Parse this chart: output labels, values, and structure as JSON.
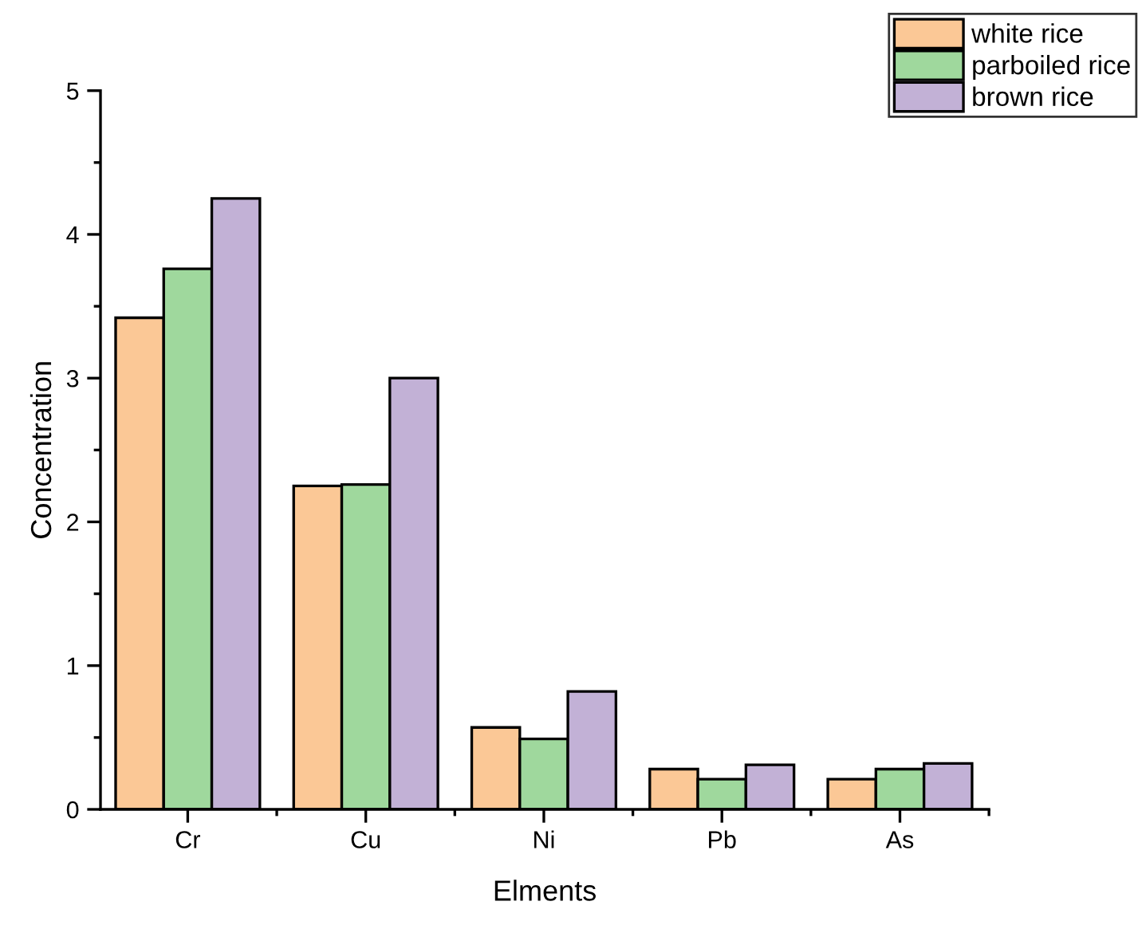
{
  "chart_data": {
    "type": "bar",
    "xlabel": "Elments",
    "ylabel": "Concentration",
    "categories": [
      "Cr",
      "Cu",
      "Ni",
      "Pb",
      "As"
    ],
    "series": [
      {
        "name": "white rice",
        "color": "#fbc896",
        "values": [
          3.42,
          2.25,
          0.57,
          0.28,
          0.21
        ]
      },
      {
        "name": "parboiled rice",
        "color": "#9fd89d",
        "values": [
          3.76,
          2.26,
          0.49,
          0.21,
          0.28
        ]
      },
      {
        "name": "brown rice",
        "color": "#c2b1d6",
        "values": [
          4.25,
          3.0,
          0.82,
          0.31,
          0.32
        ]
      }
    ],
    "ylim": [
      0,
      5
    ],
    "yticks": [
      0,
      1,
      2,
      3,
      4,
      5
    ],
    "grid": false,
    "legend": "top right"
  }
}
